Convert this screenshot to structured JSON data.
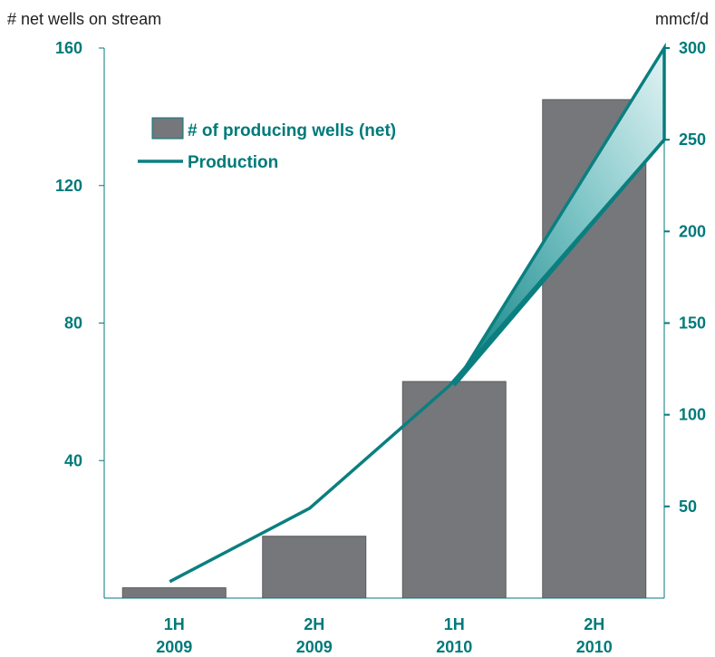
{
  "chart_data": {
    "type": "bar",
    "categories": [
      [
        "1H",
        "2009"
      ],
      [
        "2H",
        "2009"
      ],
      [
        "1H",
        "2010"
      ],
      [
        "2H",
        "2010"
      ]
    ],
    "left_axis": {
      "title": "# net wells on stream",
      "range": [
        0,
        160
      ],
      "ticks": [
        40,
        80,
        120,
        160
      ]
    },
    "right_axis": {
      "title": "mmcf/d",
      "range": [
        0,
        300
      ],
      "ticks": [
        50,
        100,
        150,
        200,
        250,
        300
      ]
    },
    "series": [
      {
        "name": "# of producing wells (net)",
        "type": "bar",
        "axis": "left",
        "values": [
          3,
          18,
          63,
          145
        ]
      },
      {
        "name": "Production",
        "type": "line",
        "axis": "right",
        "values": [
          9,
          49,
          116,
          250
        ]
      }
    ],
    "production_range": {
      "x_index": [
        2,
        3
      ],
      "low": [
        116,
        250
      ],
      "high": [
        116,
        300
      ]
    },
    "legend_position": "top-left",
    "colors": {
      "bar": "#76777b",
      "bar_edge": "#5b5c60",
      "line": "#0b7f80",
      "text": "#007a7a",
      "axis": "#007a7a",
      "band_light": "#d8eff0",
      "band_dark": "#0b7f80"
    }
  }
}
